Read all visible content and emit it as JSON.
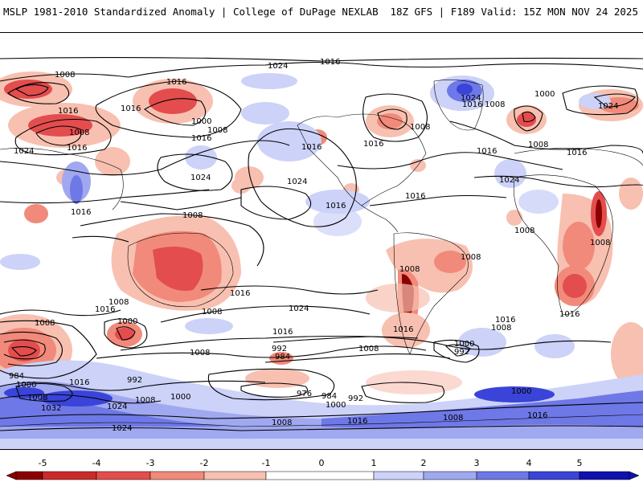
{
  "header": {
    "title_left": "MSLP 1981-2010 Standardized Anomaly | College of DuPage NEXLAB",
    "title_right": "18Z GFS | F189 Valid: 15Z MON NOV 24 2025"
  },
  "colors": {
    "neg5": "#8b0000",
    "neg4": "#cc2a2a",
    "neg3": "#e34d4d",
    "neg2": "#f18a7a",
    "neg1": "#f8c0b0",
    "zero": "#ffffff",
    "pos1": "#ccd2f8",
    "pos2": "#a0a8f0",
    "pos3": "#6e78e6",
    "pos4": "#3a44d8",
    "pos5": "#1010b0",
    "land_line": "#000000"
  },
  "isobars": {
    "i1016": "1016",
    "i1024": "1024",
    "i1008": "1008",
    "i1000": "1000",
    "i992": "992",
    "i984": "984",
    "i976": "976",
    "i1032": "1032"
  },
  "colorbar": {
    "ticks": [
      "-5",
      "-4",
      "-3",
      "-2",
      "-1",
      "0",
      "1",
      "2",
      "3",
      "4",
      "5"
    ]
  }
}
